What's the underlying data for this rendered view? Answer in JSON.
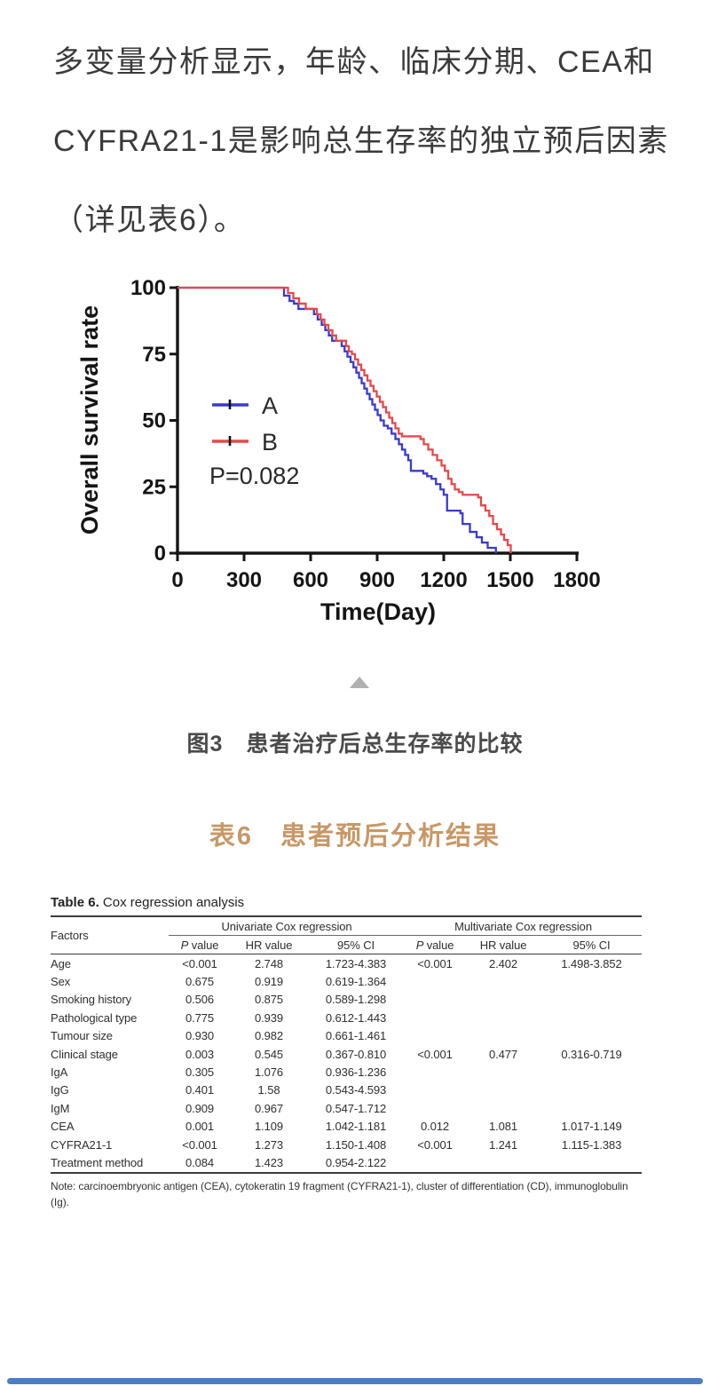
{
  "page": {
    "background": "#ffffff",
    "bottom_bar_color": "#4b7dc9"
  },
  "intro": {
    "lines": [
      "多变量分析显示，年龄、临床分期、CEA和",
      "CYFRA21-1是影响总生存率的独立预后因素",
      "（详见表6）。"
    ]
  },
  "chart_data": {
    "type": "line",
    "subtype": "kaplan-meier-step",
    "title": "",
    "xlabel": "Time(Day)",
    "ylabel": "Overall survival rate",
    "xlim": [
      0,
      1800
    ],
    "ylim": [
      0,
      100
    ],
    "xticks": [
      0,
      300,
      600,
      900,
      1200,
      1500,
      1800
    ],
    "yticks": [
      0,
      25,
      50,
      75,
      100
    ],
    "grid": false,
    "legend_position": "inside-left",
    "annotation": "P=0.082",
    "axis_color": "#151515",
    "series": [
      {
        "name": "A",
        "color": "#3a3acd",
        "points": [
          [
            0,
            100
          ],
          [
            470,
            100
          ],
          [
            480,
            97
          ],
          [
            505,
            95
          ],
          [
            525,
            94
          ],
          [
            545,
            92
          ],
          [
            600,
            92
          ],
          [
            615,
            90
          ],
          [
            632,
            88
          ],
          [
            650,
            86
          ],
          [
            666,
            84
          ],
          [
            682,
            82
          ],
          [
            697,
            80
          ],
          [
            728,
            80
          ],
          [
            740,
            78
          ],
          [
            753,
            76
          ],
          [
            766,
            74
          ],
          [
            780,
            72
          ],
          [
            793,
            70
          ],
          [
            806,
            68
          ],
          [
            818,
            66
          ],
          [
            830,
            64
          ],
          [
            842,
            62
          ],
          [
            854,
            60
          ],
          [
            866,
            58
          ],
          [
            878,
            56
          ],
          [
            890,
            54
          ],
          [
            902,
            52
          ],
          [
            915,
            50
          ],
          [
            930,
            48
          ],
          [
            948,
            47
          ],
          [
            965,
            45
          ],
          [
            982,
            43
          ],
          [
            998,
            41
          ],
          [
            1012,
            39
          ],
          [
            1026,
            37
          ],
          [
            1040,
            35
          ],
          [
            1052,
            31
          ],
          [
            1108,
            30
          ],
          [
            1125,
            29
          ],
          [
            1145,
            28
          ],
          [
            1165,
            26
          ],
          [
            1185,
            24
          ],
          [
            1200,
            22
          ],
          [
            1215,
            16
          ],
          [
            1275,
            15
          ],
          [
            1285,
            11
          ],
          [
            1318,
            8
          ],
          [
            1348,
            6
          ],
          [
            1372,
            4
          ],
          [
            1398,
            2
          ],
          [
            1435,
            0
          ]
        ]
      },
      {
        "name": "B",
        "color": "#e4494b",
        "points": [
          [
            0,
            100
          ],
          [
            488,
            100
          ],
          [
            498,
            98
          ],
          [
            522,
            96
          ],
          [
            548,
            94
          ],
          [
            578,
            92
          ],
          [
            615,
            92
          ],
          [
            628,
            90
          ],
          [
            645,
            88
          ],
          [
            662,
            86
          ],
          [
            680,
            84
          ],
          [
            698,
            82
          ],
          [
            715,
            80
          ],
          [
            748,
            80
          ],
          [
            760,
            78
          ],
          [
            772,
            76
          ],
          [
            786,
            75
          ],
          [
            800,
            73
          ],
          [
            814,
            71
          ],
          [
            828,
            69
          ],
          [
            842,
            67
          ],
          [
            856,
            65
          ],
          [
            870,
            63
          ],
          [
            884,
            61
          ],
          [
            898,
            59
          ],
          [
            912,
            57
          ],
          [
            926,
            55
          ],
          [
            940,
            53
          ],
          [
            954,
            51
          ],
          [
            968,
            49
          ],
          [
            982,
            47
          ],
          [
            997,
            45
          ],
          [
            1012,
            44
          ],
          [
            1095,
            43
          ],
          [
            1110,
            41
          ],
          [
            1130,
            39
          ],
          [
            1150,
            37
          ],
          [
            1170,
            35
          ],
          [
            1190,
            33
          ],
          [
            1205,
            31
          ],
          [
            1220,
            28
          ],
          [
            1235,
            26
          ],
          [
            1250,
            24
          ],
          [
            1268,
            23
          ],
          [
            1285,
            22
          ],
          [
            1355,
            21
          ],
          [
            1368,
            18
          ],
          [
            1388,
            16
          ],
          [
            1405,
            14
          ],
          [
            1422,
            11
          ],
          [
            1440,
            9
          ],
          [
            1458,
            7
          ],
          [
            1472,
            5
          ],
          [
            1488,
            3
          ],
          [
            1502,
            0
          ]
        ]
      }
    ]
  },
  "figure": {
    "caption": "图3　患者治疗后总生存率的比较",
    "collapse_icon": "triangle-up"
  },
  "table_section": {
    "title_cn": "表6　患者预后分析结果",
    "title_color": "#c79868"
  },
  "table": {
    "caption_bold": "Table 6.",
    "caption_rest": " Cox regression analysis",
    "factors_header": "Factors",
    "group_headers": [
      "Univariate Cox regression",
      "Multivariate Cox regression"
    ],
    "sub_headers": [
      "P value",
      "HR value",
      "95% CI",
      "P value",
      "HR value",
      "95% CI"
    ],
    "rows": [
      {
        "factor": "Age",
        "cells": [
          "<0.001",
          "2.748",
          "1.723-4.383",
          "<0.001",
          "2.402",
          "1.498-3.852"
        ]
      },
      {
        "factor": "Sex",
        "cells": [
          "0.675",
          "0.919",
          "0.619-1.364",
          "",
          "",
          ""
        ]
      },
      {
        "factor": "Smoking history",
        "cells": [
          "0.506",
          "0.875",
          "0.589-1.298",
          "",
          "",
          ""
        ]
      },
      {
        "factor": "Pathological type",
        "cells": [
          "0.775",
          "0.939",
          "0.612-1.443",
          "",
          "",
          ""
        ]
      },
      {
        "factor": "Tumour size",
        "cells": [
          "0.930",
          "0.982",
          "0.661-1.461",
          "",
          "",
          ""
        ]
      },
      {
        "factor": "Clinical stage",
        "cells": [
          "0.003",
          "0.545",
          "0.367-0.810",
          "<0.001",
          "0.477",
          "0.316-0.719"
        ]
      },
      {
        "factor": "IgA",
        "cells": [
          "0.305",
          "1.076",
          "0.936-1.236",
          "",
          "",
          ""
        ]
      },
      {
        "factor": "IgG",
        "cells": [
          "0.401",
          "1.58",
          "0.543-4.593",
          "",
          "",
          ""
        ]
      },
      {
        "factor": "IgM",
        "cells": [
          "0.909",
          "0.967",
          "0.547-1.712",
          "",
          "",
          ""
        ]
      },
      {
        "factor": "CEA",
        "cells": [
          "0.001",
          "1.109",
          "1.042-1.181",
          "0.012",
          "1.081",
          "1.017-1.149"
        ]
      },
      {
        "factor": "CYFRA21-1",
        "cells": [
          "<0.001",
          "1.273",
          "1.150-1.408",
          "<0.001",
          "1.241",
          "1.115-1.383"
        ]
      },
      {
        "factor": "Treatment method",
        "cells": [
          "0.084",
          "1.423",
          "0.954-2.122",
          "",
          "",
          ""
        ]
      }
    ],
    "note": "Note: carcinoembryonic antigen (CEA), cytokeratin 19 fragment (CYFRA21-1), cluster of differentiation (CD), immunoglobulin (Ig)."
  }
}
